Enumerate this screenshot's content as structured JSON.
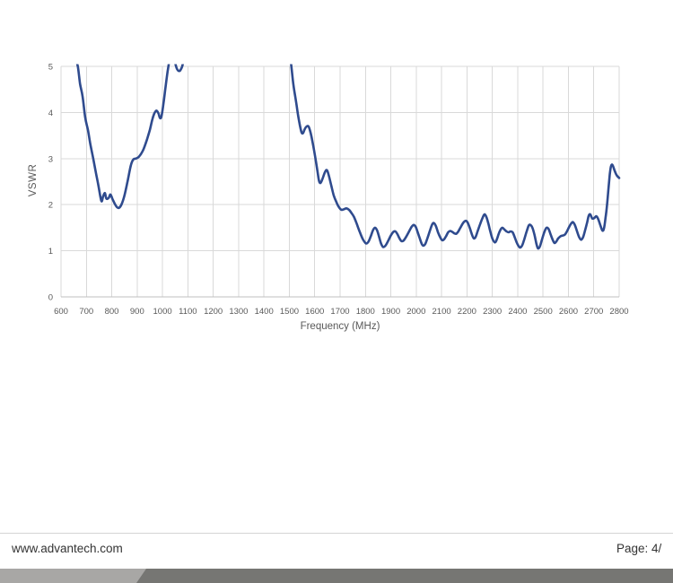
{
  "page": {
    "footer": {
      "website": "www.advantech.com",
      "page_label": "Page: 4/"
    },
    "colors": {
      "line": "#2f4b8e",
      "grid": "#d9d9d9",
      "axis": "#bfbfbf",
      "tick_text": "#595959",
      "divider": "#d4d4d4",
      "bar_light": "#a8a7a5",
      "bar_dark": "#767673"
    }
  },
  "chart_data": {
    "type": "line",
    "title": "",
    "xlabel": "Frequency (MHz)",
    "ylabel": "VSWR",
    "xlim": [
      600,
      2800
    ],
    "ylim": [
      0,
      5
    ],
    "grid": true,
    "legend": "none",
    "clip_above_y": 5,
    "x_ticks": [
      600,
      700,
      800,
      900,
      1000,
      1100,
      1200,
      1300,
      1400,
      1500,
      1600,
      1700,
      1800,
      1900,
      2000,
      2100,
      2200,
      2300,
      2400,
      2500,
      2600,
      2700,
      2800
    ],
    "y_ticks": [
      0,
      1,
      2,
      3,
      4,
      5
    ],
    "series": [
      {
        "name": "VSWR",
        "color": "#2f4b8e",
        "points": [
          [
            600,
            7.0
          ],
          [
            640,
            6.3
          ],
          [
            650,
            5.75
          ],
          [
            658,
            5.2
          ],
          [
            667,
            4.98
          ],
          [
            675,
            4.62
          ],
          [
            685,
            4.35
          ],
          [
            695,
            3.9
          ],
          [
            706,
            3.62
          ],
          [
            716,
            3.3
          ],
          [
            727,
            3.0
          ],
          [
            738,
            2.68
          ],
          [
            748,
            2.4
          ],
          [
            759,
            2.08
          ],
          [
            766,
            2.18
          ],
          [
            773,
            2.25
          ],
          [
            779,
            2.13
          ],
          [
            788,
            2.15
          ],
          [
            795,
            2.22
          ],
          [
            803,
            2.12
          ],
          [
            812,
            2.02
          ],
          [
            820,
            1.95
          ],
          [
            828,
            1.93
          ],
          [
            838,
            2.0
          ],
          [
            850,
            2.2
          ],
          [
            862,
            2.5
          ],
          [
            875,
            2.85
          ],
          [
            885,
            2.98
          ],
          [
            895,
            3.0
          ],
          [
            905,
            3.03
          ],
          [
            915,
            3.1
          ],
          [
            925,
            3.2
          ],
          [
            938,
            3.4
          ],
          [
            950,
            3.62
          ],
          [
            960,
            3.85
          ],
          [
            968,
            3.98
          ],
          [
            976,
            4.04
          ],
          [
            984,
            3.98
          ],
          [
            990,
            3.88
          ],
          [
            996,
            3.92
          ],
          [
            1004,
            4.2
          ],
          [
            1012,
            4.55
          ],
          [
            1020,
            4.88
          ],
          [
            1028,
            5.15
          ],
          [
            1038,
            5.4
          ],
          [
            1048,
            5.12
          ],
          [
            1056,
            4.96
          ],
          [
            1064,
            4.9
          ],
          [
            1072,
            4.93
          ],
          [
            1080,
            5.05
          ],
          [
            1090,
            5.4
          ],
          [
            1120,
            7.0
          ],
          [
            1300,
            9.0
          ],
          [
            1470,
            7.0
          ],
          [
            1495,
            5.6
          ],
          [
            1508,
            5.0
          ],
          [
            1516,
            4.6
          ],
          [
            1526,
            4.25
          ],
          [
            1534,
            3.95
          ],
          [
            1541,
            3.74
          ],
          [
            1548,
            3.57
          ],
          [
            1554,
            3.55
          ],
          [
            1560,
            3.63
          ],
          [
            1567,
            3.69
          ],
          [
            1575,
            3.7
          ],
          [
            1582,
            3.6
          ],
          [
            1590,
            3.4
          ],
          [
            1600,
            3.1
          ],
          [
            1610,
            2.75
          ],
          [
            1617,
            2.52
          ],
          [
            1623,
            2.47
          ],
          [
            1630,
            2.55
          ],
          [
            1640,
            2.7
          ],
          [
            1648,
            2.75
          ],
          [
            1656,
            2.62
          ],
          [
            1665,
            2.42
          ],
          [
            1675,
            2.2
          ],
          [
            1685,
            2.06
          ],
          [
            1695,
            1.95
          ],
          [
            1705,
            1.89
          ],
          [
            1715,
            1.9
          ],
          [
            1725,
            1.92
          ],
          [
            1735,
            1.89
          ],
          [
            1745,
            1.82
          ],
          [
            1755,
            1.73
          ],
          [
            1766,
            1.58
          ],
          [
            1778,
            1.4
          ],
          [
            1790,
            1.25
          ],
          [
            1802,
            1.16
          ],
          [
            1812,
            1.2
          ],
          [
            1822,
            1.33
          ],
          [
            1830,
            1.45
          ],
          [
            1838,
            1.5
          ],
          [
            1846,
            1.44
          ],
          [
            1854,
            1.3
          ],
          [
            1862,
            1.15
          ],
          [
            1870,
            1.08
          ],
          [
            1880,
            1.12
          ],
          [
            1890,
            1.22
          ],
          [
            1900,
            1.33
          ],
          [
            1910,
            1.41
          ],
          [
            1918,
            1.42
          ],
          [
            1926,
            1.36
          ],
          [
            1934,
            1.27
          ],
          [
            1942,
            1.21
          ],
          [
            1950,
            1.22
          ],
          [
            1960,
            1.3
          ],
          [
            1972,
            1.42
          ],
          [
            1982,
            1.52
          ],
          [
            1990,
            1.56
          ],
          [
            1998,
            1.52
          ],
          [
            2006,
            1.4
          ],
          [
            2014,
            1.27
          ],
          [
            2022,
            1.15
          ],
          [
            2028,
            1.11
          ],
          [
            2036,
            1.15
          ],
          [
            2046,
            1.3
          ],
          [
            2056,
            1.47
          ],
          [
            2064,
            1.58
          ],
          [
            2070,
            1.6
          ],
          [
            2078,
            1.53
          ],
          [
            2086,
            1.4
          ],
          [
            2094,
            1.3
          ],
          [
            2102,
            1.23
          ],
          [
            2110,
            1.25
          ],
          [
            2118,
            1.32
          ],
          [
            2126,
            1.4
          ],
          [
            2134,
            1.43
          ],
          [
            2142,
            1.41
          ],
          [
            2150,
            1.38
          ],
          [
            2158,
            1.37
          ],
          [
            2166,
            1.42
          ],
          [
            2176,
            1.52
          ],
          [
            2186,
            1.61
          ],
          [
            2196,
            1.65
          ],
          [
            2204,
            1.6
          ],
          [
            2212,
            1.48
          ],
          [
            2220,
            1.35
          ],
          [
            2227,
            1.27
          ],
          [
            2234,
            1.3
          ],
          [
            2242,
            1.42
          ],
          [
            2252,
            1.58
          ],
          [
            2262,
            1.72
          ],
          [
            2269,
            1.79
          ],
          [
            2276,
            1.74
          ],
          [
            2284,
            1.6
          ],
          [
            2292,
            1.42
          ],
          [
            2300,
            1.27
          ],
          [
            2310,
            1.18
          ],
          [
            2318,
            1.25
          ],
          [
            2326,
            1.38
          ],
          [
            2334,
            1.47
          ],
          [
            2340,
            1.5
          ],
          [
            2348,
            1.46
          ],
          [
            2356,
            1.42
          ],
          [
            2364,
            1.4
          ],
          [
            2372,
            1.42
          ],
          [
            2380,
            1.4
          ],
          [
            2388,
            1.3
          ],
          [
            2396,
            1.18
          ],
          [
            2404,
            1.1
          ],
          [
            2410,
            1.07
          ],
          [
            2418,
            1.12
          ],
          [
            2426,
            1.25
          ],
          [
            2436,
            1.43
          ],
          [
            2444,
            1.55
          ],
          [
            2450,
            1.56
          ],
          [
            2458,
            1.5
          ],
          [
            2466,
            1.35
          ],
          [
            2474,
            1.15
          ],
          [
            2480,
            1.05
          ],
          [
            2488,
            1.1
          ],
          [
            2496,
            1.25
          ],
          [
            2506,
            1.42
          ],
          [
            2514,
            1.5
          ],
          [
            2522,
            1.47
          ],
          [
            2530,
            1.35
          ],
          [
            2538,
            1.24
          ],
          [
            2545,
            1.17
          ],
          [
            2552,
            1.2
          ],
          [
            2560,
            1.27
          ],
          [
            2570,
            1.32
          ],
          [
            2578,
            1.33
          ],
          [
            2586,
            1.35
          ],
          [
            2594,
            1.42
          ],
          [
            2604,
            1.53
          ],
          [
            2612,
            1.6
          ],
          [
            2618,
            1.62
          ],
          [
            2626,
            1.55
          ],
          [
            2634,
            1.42
          ],
          [
            2642,
            1.3
          ],
          [
            2650,
            1.24
          ],
          [
            2658,
            1.3
          ],
          [
            2666,
            1.45
          ],
          [
            2674,
            1.62
          ],
          [
            2680,
            1.76
          ],
          [
            2686,
            1.79
          ],
          [
            2694,
            1.7
          ],
          [
            2702,
            1.71
          ],
          [
            2710,
            1.75
          ],
          [
            2718,
            1.68
          ],
          [
            2726,
            1.55
          ],
          [
            2734,
            1.44
          ],
          [
            2740,
            1.48
          ],
          [
            2746,
            1.7
          ],
          [
            2752,
            1.98
          ],
          [
            2758,
            2.35
          ],
          [
            2763,
            2.65
          ],
          [
            2768,
            2.84
          ],
          [
            2774,
            2.86
          ],
          [
            2782,
            2.74
          ],
          [
            2790,
            2.64
          ],
          [
            2800,
            2.58
          ]
        ]
      }
    ]
  }
}
